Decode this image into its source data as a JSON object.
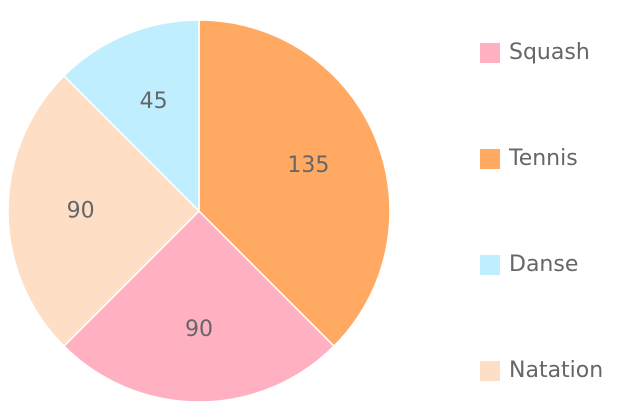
{
  "chart_data": {
    "type": "pie",
    "title": "",
    "categories": [
      "Squash",
      "Tennis",
      "Danse",
      "Natation"
    ],
    "values": [
      90,
      135,
      45,
      90
    ],
    "colors": [
      "#ffb1c1",
      "#ffa963",
      "#bfeefe",
      "#fedec5"
    ],
    "start_angle_deg": 90,
    "direction": "counterclockwise-from-top",
    "legend_position": "right",
    "data_labels": true
  }
}
